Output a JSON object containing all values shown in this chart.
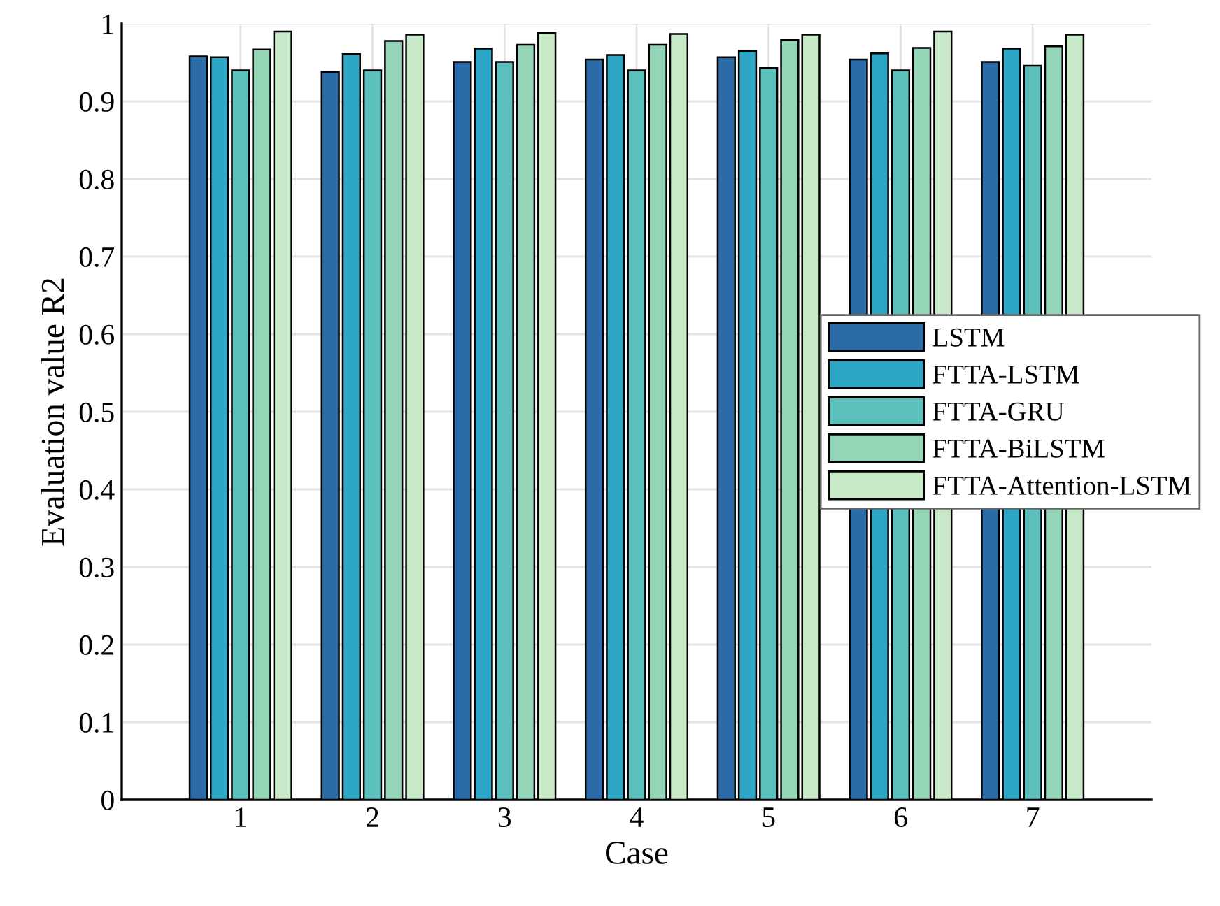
{
  "chart_data": {
    "type": "bar",
    "xlabel": "Case",
    "ylabel": "Evaluation value R2",
    "categories": [
      "1",
      "2",
      "3",
      "4",
      "5",
      "6",
      "7"
    ],
    "series": [
      {
        "name": "LSTM",
        "color": "#2b6ca8",
        "values": [
          0.958,
          0.938,
          0.951,
          0.954,
          0.957,
          0.954,
          0.951
        ]
      },
      {
        "name": "FTTA-LSTM",
        "color": "#2da5c4",
        "values": [
          0.957,
          0.961,
          0.968,
          0.96,
          0.965,
          0.962,
          0.968
        ]
      },
      {
        "name": "FTTA-GRU",
        "color": "#5bbfbc",
        "values": [
          0.94,
          0.94,
          0.951,
          0.94,
          0.943,
          0.94,
          0.946
        ]
      },
      {
        "name": "FTTA-BiLSTM",
        "color": "#94d5b8",
        "values": [
          0.967,
          0.978,
          0.973,
          0.973,
          0.979,
          0.969,
          0.971
        ]
      },
      {
        "name": "FTTA-Attention-LSTM",
        "color": "#c8e9c7",
        "values": [
          0.99,
          0.986,
          0.988,
          0.987,
          0.986,
          0.99,
          0.986
        ]
      }
    ],
    "ylim": [
      0,
      1
    ],
    "yticks": [
      0,
      0.1,
      0.2,
      0.3,
      0.4,
      0.5,
      0.6,
      0.7,
      0.8,
      0.9,
      1
    ],
    "grid": true,
    "legend": "right"
  }
}
